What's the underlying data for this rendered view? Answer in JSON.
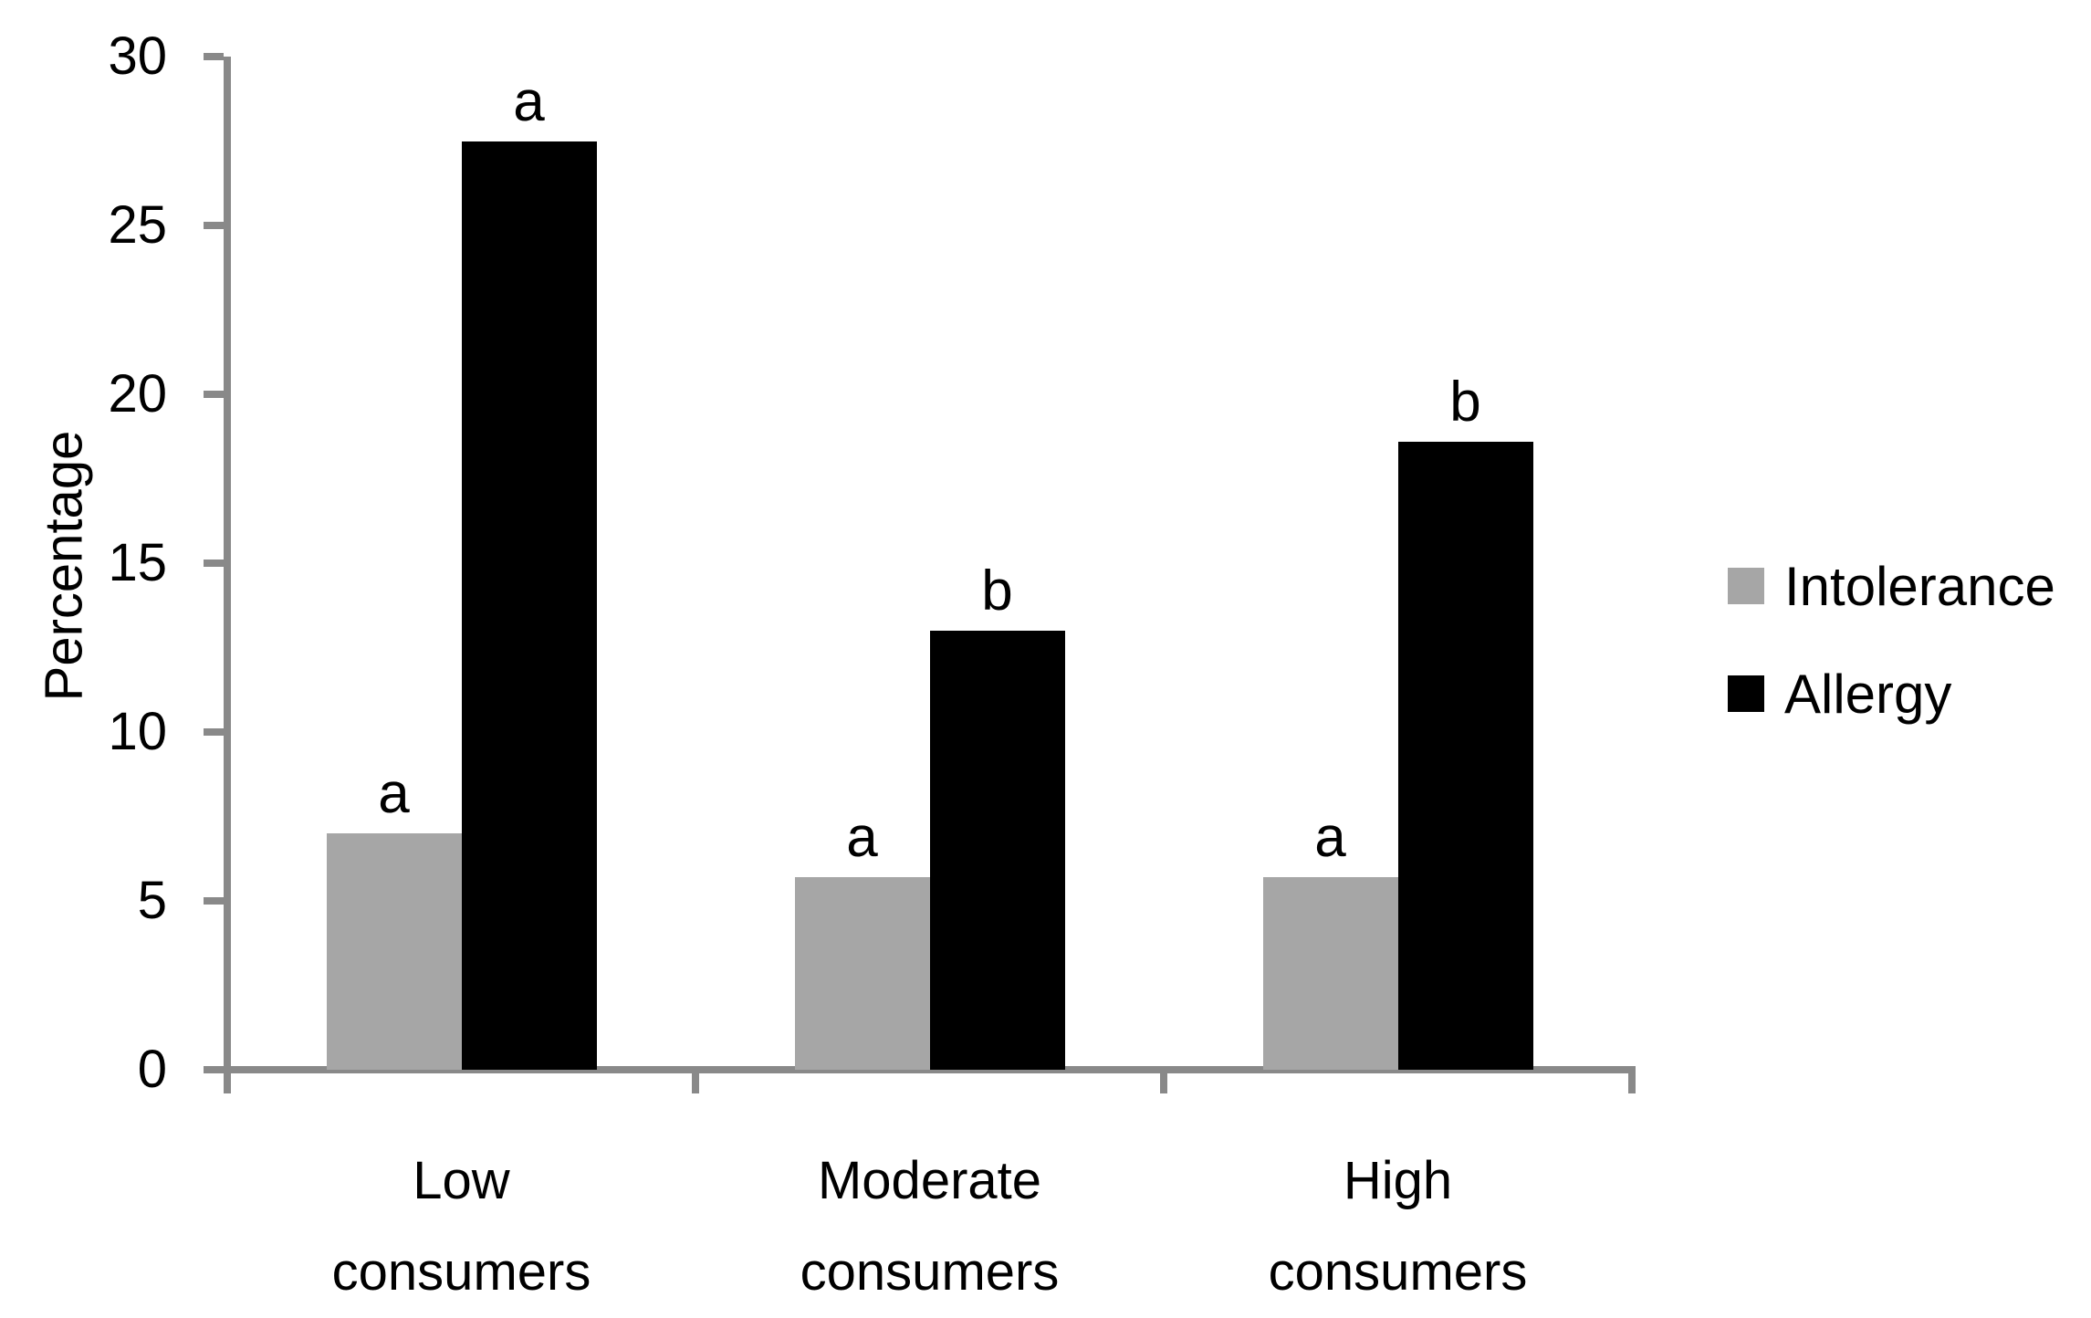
{
  "figure": {
    "background": "#ffffff",
    "axis_color": "#898989",
    "text_color": "#000000"
  },
  "chart_data": {
    "type": "bar",
    "title": "",
    "xlabel": "",
    "ylabel": "Percentage",
    "ylim": [
      0,
      30
    ],
    "yticks": [
      0,
      5,
      10,
      15,
      20,
      25,
      30
    ],
    "grid": false,
    "legend_position": "right",
    "categories": [
      "Low consumers",
      "Moderate consumers",
      "High consumers"
    ],
    "series": [
      {
        "name": "Intolerance",
        "color": "#a6a6a6",
        "values": [
          7.0,
          5.7,
          5.7
        ],
        "annotations": [
          "a",
          "a",
          "a"
        ]
      },
      {
        "name": "Allergy",
        "color": "#000000",
        "values": [
          27.5,
          13.0,
          18.6
        ],
        "annotations": [
          "a",
          "b",
          "b"
        ]
      }
    ]
  }
}
